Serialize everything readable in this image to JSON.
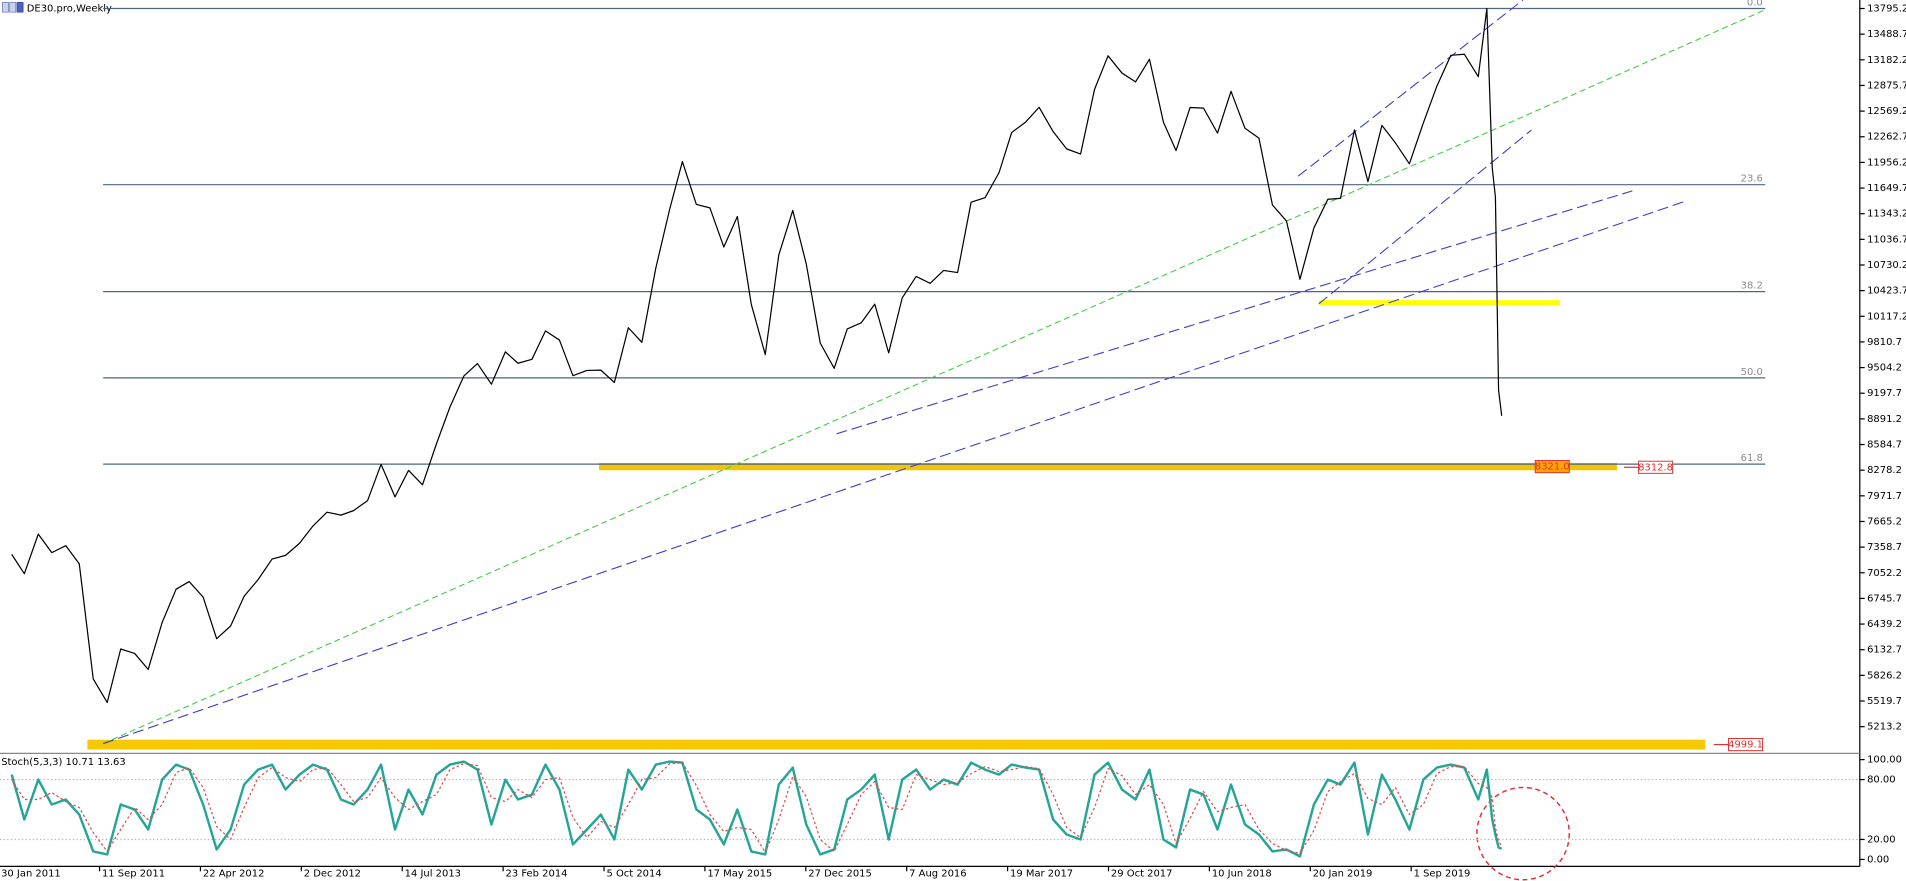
{
  "chart_data": [
    {
      "type": "line",
      "title": "DE30.pro,Weekly",
      "x": [
        "2011-02-28",
        "2011-03-28",
        "2011-04-28",
        "2011-05-28",
        "2011-06-28",
        "2011-07-28",
        "2011-08-28",
        "2011-09-28",
        "2011-10-28",
        "2011-11-28",
        "2011-12-28",
        "2012-01-28",
        "2012-02-28",
        "2012-03-28",
        "2012-04-28",
        "2012-05-28",
        "2012-06-28",
        "2012-07-28",
        "2012-08-28",
        "2012-09-28",
        "2012-10-28",
        "2012-11-28",
        "2012-12-28",
        "2013-01-28",
        "2013-02-28",
        "2013-03-28",
        "2013-04-28",
        "2013-05-28",
        "2013-06-28",
        "2013-07-28",
        "2013-08-28",
        "2013-09-28",
        "2013-10-28",
        "2013-11-28",
        "2013-12-28",
        "2014-01-28",
        "2014-02-28",
        "2014-03-28",
        "2014-04-28",
        "2014-05-28",
        "2014-06-28",
        "2014-07-28",
        "2014-08-28",
        "2014-09-28",
        "2014-10-28",
        "2014-11-28",
        "2014-12-28",
        "2015-01-28",
        "2015-02-28",
        "2015-03-28",
        "2015-04-28",
        "2015-05-28",
        "2015-06-28",
        "2015-07-28",
        "2015-08-28",
        "2015-09-28",
        "2015-10-28",
        "2015-11-28",
        "2015-12-28",
        "2016-01-28",
        "2016-02-28",
        "2016-03-28",
        "2016-04-28",
        "2016-05-28",
        "2016-06-28",
        "2016-07-28",
        "2016-08-28",
        "2016-09-28",
        "2016-10-28",
        "2016-11-28",
        "2016-12-28",
        "2017-01-28",
        "2017-02-28",
        "2017-03-28",
        "2017-04-28",
        "2017-05-28",
        "2017-06-28",
        "2017-07-28",
        "2017-08-28",
        "2017-09-28",
        "2017-10-28",
        "2017-11-28",
        "2017-12-28",
        "2018-01-28",
        "2018-02-28",
        "2018-03-28",
        "2018-04-28",
        "2018-05-28",
        "2018-06-28",
        "2018-07-28",
        "2018-08-28",
        "2018-09-28",
        "2018-10-28",
        "2018-11-28",
        "2018-12-28",
        "2019-01-28",
        "2019-02-28",
        "2019-03-28",
        "2019-04-28",
        "2019-05-28",
        "2019-06-28",
        "2019-07-28",
        "2019-08-28",
        "2019-09-28",
        "2019-10-28",
        "2019-11-28",
        "2019-12-28",
        "2020-01-28",
        "2020-02-16",
        "2020-02-28",
        "2020-03-06",
        "2020-03-13",
        "2020-03-20"
      ],
      "series": [
        {
          "color": "#000000",
          "values": [
            7272,
            7041,
            7514,
            7293,
            7376,
            7158,
            5784,
            5502,
            6141,
            6088,
            5898,
            6458,
            6856,
            6947,
            6761,
            6264,
            6416,
            6772,
            6970,
            7216,
            7260,
            7405,
            7612,
            7776,
            7741,
            7795,
            7914,
            8348,
            7959,
            8276,
            8103,
            8594,
            9033,
            9405,
            9552,
            9306,
            9692,
            9556,
            9603,
            9943,
            9833,
            9407,
            9470,
            9474,
            9326,
            9980,
            9806,
            10694,
            11402,
            11966,
            11454,
            11413,
            10945,
            11309,
            10259,
            9660,
            10850,
            11382,
            10743,
            9798,
            9495,
            9966,
            10039,
            10263,
            9680,
            10337,
            10593,
            10511,
            10665,
            10640,
            11481,
            11535,
            11834,
            12313,
            12438,
            12615,
            12325,
            12118,
            12056,
            12829,
            13230,
            13024,
            12918,
            13189,
            12436,
            12097,
            12612,
            12605,
            12306,
            12806,
            12364,
            12247,
            11447,
            11257,
            10559,
            11173,
            11516,
            11526,
            12344,
            11727,
            12399,
            12189,
            11939,
            12428,
            12867,
            13236,
            13249,
            12981,
            13795,
            11890,
            11540,
            9232,
            8928
          ]
        }
      ],
      "xlim": [
        "2011-02-02",
        "2022-05-24"
      ],
      "xticks": [
        {
          "value": "2011-01-30",
          "label": "30 Jan 2011"
        },
        {
          "value": "2011-09-11",
          "label": "11 Sep 2011"
        },
        {
          "value": "2012-04-22",
          "label": "22 Apr 2012"
        },
        {
          "value": "2012-12-02",
          "label": "2 Dec 2012"
        },
        {
          "value": "2013-07-14",
          "label": "14 Jul 2013"
        },
        {
          "value": "2014-02-23",
          "label": "23 Feb 2014"
        },
        {
          "value": "2014-10-05",
          "label": "5 Oct 2014"
        },
        {
          "value": "2015-05-17",
          "label": "17 May 2015"
        },
        {
          "value": "2015-12-27",
          "label": "27 Dec 2015"
        },
        {
          "value": "2016-08-07",
          "label": "7 Aug 2016"
        },
        {
          "value": "2017-03-19",
          "label": "19 Mar 2017"
        },
        {
          "value": "2017-10-29",
          "label": "29 Oct 2017"
        },
        {
          "value": "2018-06-10",
          "label": "10 Jun 2018"
        },
        {
          "value": "2019-01-20",
          "label": "20 Jan 2019"
        },
        {
          "value": "2019-09-01",
          "label": "1 Sep 2019"
        }
      ],
      "ylim": [
        4908,
        13897
      ],
      "yticks": [
        13795.2,
        13488.7,
        13182.2,
        12875.7,
        12569.2,
        12262.7,
        11956.2,
        11649.7,
        11343.2,
        11036.7,
        10730.2,
        10423.7,
        10117.2,
        9810.7,
        9504.2,
        9197.7,
        8891.2,
        8584.7,
        8278.2,
        7971.7,
        7665.2,
        7358.7,
        7052.2,
        6745.7,
        6439.2,
        6132.7,
        5826.2,
        5519.7,
        5213.2
      ],
      "fib_x": [
        "2011-09-19",
        "2021-10-26"
      ],
      "fib_color": "#4f6580",
      "fib_levels": [
        {
          "label": "0.0",
          "price": 13795.2
        },
        {
          "label": "23.6",
          "price": 11690
        },
        {
          "label": "38.2",
          "price": 10412
        },
        {
          "label": "50.0",
          "price": 9381
        },
        {
          "label": "61.8",
          "price": 8350
        }
      ],
      "zones": [
        {
          "price": 8321,
          "x": [
            "2014-09-24",
            "2020-12-01"
          ],
          "color": "#f2c500",
          "height": 6
        },
        {
          "price": 4999.1,
          "x": [
            "2011-08-15",
            "2021-06-15"
          ],
          "color": "#f5c800",
          "height": 8
        },
        {
          "price": 10281,
          "x": [
            "2019-02-08",
            "2020-07-27"
          ],
          "color": "#ffff00",
          "height": 4
        }
      ],
      "trendlines": [
        {
          "x": [
            "2011-09-19",
            "2021-10-26"
          ],
          "y": [
            5010.5,
            13780
          ],
          "color": "#44cc44",
          "dash": "5,3"
        },
        {
          "x": [
            "2011-09-19",
            "2021-05-06"
          ],
          "y": [
            5010.5,
            11501
          ],
          "color": "#3c3ccc",
          "dash": "9,4"
        },
        {
          "x": [
            "2016-03-04",
            "2021-01-04"
          ],
          "y": [
            8713,
            11616
          ],
          "color": "#3c3ccc",
          "dash": "9,4"
        },
        {
          "x": [
            "2019-02-08",
            "2020-05-25"
          ],
          "y": [
            10266.6,
            12343
          ],
          "color": "#3c3ccc",
          "dash": "9,4"
        },
        {
          "x": [
            "2018-12-24",
            "2020-05-06"
          ],
          "y": [
            11791,
            13897
          ],
          "color": "#3c3ccc",
          "dash": "9,4"
        }
      ],
      "price_labels": [
        {
          "label": "8321.0",
          "price": 8321.0
        },
        {
          "label": "8312.8",
          "price": 8312.8
        },
        {
          "label": "4999.1",
          "price": 4999.1
        }
      ]
    },
    {
      "type": "line",
      "title": "Stoch(5,3,3) 10.71 13.63",
      "x": [
        "2011-02-28",
        "2011-03-28",
        "2011-04-28",
        "2011-05-28",
        "2011-06-28",
        "2011-07-28",
        "2011-08-28",
        "2011-09-28",
        "2011-10-28",
        "2011-11-28",
        "2011-12-28",
        "2012-01-28",
        "2012-02-28",
        "2012-03-28",
        "2012-04-28",
        "2012-05-28",
        "2012-06-28",
        "2012-07-28",
        "2012-08-28",
        "2012-09-28",
        "2012-10-28",
        "2012-11-28",
        "2012-12-28",
        "2013-01-28",
        "2013-02-28",
        "2013-03-28",
        "2013-04-28",
        "2013-05-28",
        "2013-06-28",
        "2013-07-28",
        "2013-08-28",
        "2013-09-28",
        "2013-10-28",
        "2013-11-28",
        "2013-12-28",
        "2014-01-28",
        "2014-02-28",
        "2014-03-28",
        "2014-04-28",
        "2014-05-28",
        "2014-06-28",
        "2014-07-28",
        "2014-08-28",
        "2014-09-28",
        "2014-10-28",
        "2014-11-28",
        "2014-12-28",
        "2015-01-28",
        "2015-02-28",
        "2015-03-28",
        "2015-04-28",
        "2015-05-28",
        "2015-06-28",
        "2015-07-28",
        "2015-08-28",
        "2015-09-28",
        "2015-10-28",
        "2015-11-28",
        "2015-12-28",
        "2016-01-28",
        "2016-02-28",
        "2016-03-28",
        "2016-04-28",
        "2016-05-28",
        "2016-06-28",
        "2016-07-28",
        "2016-08-28",
        "2016-09-28",
        "2016-10-28",
        "2016-11-28",
        "2016-12-28",
        "2017-01-28",
        "2017-02-28",
        "2017-03-28",
        "2017-04-28",
        "2017-05-28",
        "2017-06-28",
        "2017-07-28",
        "2017-08-28",
        "2017-09-28",
        "2017-10-28",
        "2017-11-28",
        "2017-12-28",
        "2018-01-28",
        "2018-02-28",
        "2018-03-28",
        "2018-04-28",
        "2018-05-28",
        "2018-06-28",
        "2018-07-28",
        "2018-08-28",
        "2018-09-28",
        "2018-10-28",
        "2018-11-28",
        "2018-12-28",
        "2019-01-28",
        "2019-02-28",
        "2019-03-28",
        "2019-04-28",
        "2019-05-28",
        "2019-06-28",
        "2019-07-28",
        "2019-08-28",
        "2019-09-28",
        "2019-10-28",
        "2019-11-28",
        "2019-12-28",
        "2020-01-28",
        "2020-02-16",
        "2020-02-28",
        "2020-03-06",
        "2020-03-13",
        "2020-03-20"
      ],
      "series": [
        {
          "color": "#25a596",
          "width": 2,
          "values": [
            85,
            40,
            80,
            55,
            60,
            45,
            8,
            5,
            55,
            50,
            30,
            80,
            95,
            90,
            55,
            10,
            30,
            75,
            90,
            95,
            70,
            85,
            95,
            90,
            60,
            55,
            70,
            95,
            30,
            70,
            45,
            85,
            95,
            98,
            90,
            35,
            80,
            60,
            65,
            95,
            70,
            15,
            30,
            45,
            20,
            90,
            70,
            95,
            98,
            97,
            50,
            40,
            15,
            50,
            8,
            5,
            75,
            92,
            35,
            5,
            10,
            60,
            70,
            85,
            20,
            80,
            90,
            70,
            80,
            75,
            97,
            90,
            85,
            95,
            92,
            90,
            40,
            25,
            20,
            85,
            97,
            70,
            60,
            90,
            20,
            12,
            70,
            65,
            30,
            75,
            35,
            25,
            8,
            10,
            3,
            55,
            80,
            75,
            97,
            25,
            85,
            60,
            30,
            80,
            92,
            95,
            92,
            60,
            90,
            40,
            25,
            12,
            10.71
          ]
        },
        {
          "color": "#e04848",
          "width": 1,
          "dash": "2,2",
          "values": [
            80,
            60,
            60,
            67,
            58,
            52,
            27,
            8,
            30,
            52,
            40,
            55,
            87,
            92,
            72,
            33,
            20,
            52,
            82,
            92,
            82,
            78,
            90,
            92,
            75,
            58,
            62,
            82,
            62,
            50,
            58,
            65,
            90,
            96,
            94,
            62,
            58,
            70,
            62,
            80,
            82,
            42,
            22,
            38,
            32,
            55,
            80,
            82,
            96,
            97,
            74,
            45,
            28,
            32,
            30,
            7,
            40,
            83,
            63,
            20,
            8,
            35,
            65,
            78,
            52,
            50,
            85,
            80,
            75,
            77,
            86,
            93,
            88,
            90,
            93,
            91,
            65,
            32,
            22,
            52,
            91,
            84,
            65,
            75,
            55,
            16,
            41,
            68,
            48,
            52,
            55,
            30,
            16,
            9,
            6,
            29,
            68,
            78,
            86,
            61,
            55,
            72,
            45,
            55,
            86,
            93,
            93,
            76,
            72,
            62,
            32,
            18,
            13.63
          ]
        }
      ],
      "xlim": [
        "2011-02-02",
        "2022-05-24"
      ],
      "ylim": [
        -7,
        105
      ],
      "yticks": [
        {
          "value": 100,
          "label": "100.00"
        },
        {
          "value": 80,
          "label": "80.00"
        },
        {
          "value": 20,
          "label": "20.00"
        },
        {
          "value": 0,
          "label": "0.00"
        }
      ],
      "levels": [
        80,
        20
      ]
    }
  ]
}
